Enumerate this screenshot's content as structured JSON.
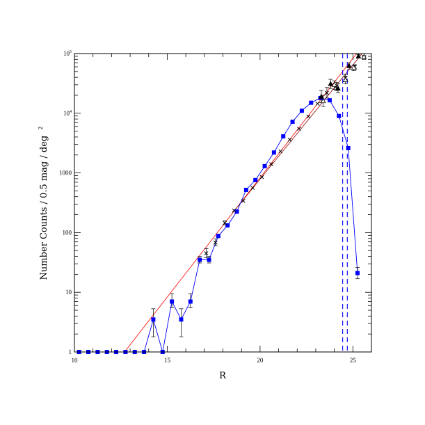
{
  "chart_data": {
    "type": "scatter",
    "title": "",
    "xlabel": "R",
    "ylabel": "Number Counts / 0.5 mag / deg",
    "ylabel_superscript": "2",
    "xlim": [
      10,
      26
    ],
    "ylim": [
      1,
      100000
    ],
    "yscale": "log",
    "grid": false,
    "legend": "none",
    "x_ticks": [
      {
        "value": 10,
        "label": "10"
      },
      {
        "value": 15,
        "label": "15"
      },
      {
        "value": 20,
        "label": "20"
      },
      {
        "value": 25,
        "label": "25"
      }
    ],
    "y_ticks": [
      {
        "value": 1,
        "label": "1",
        "sup": ""
      },
      {
        "value": 10,
        "label": "10",
        "sup": ""
      },
      {
        "value": 100,
        "label": "100",
        "sup": ""
      },
      {
        "value": 1000,
        "label": "1000",
        "sup": ""
      },
      {
        "value": 10000,
        "label": "10",
        "sup": "4"
      },
      {
        "value": 100000,
        "label": "10",
        "sup": "5"
      }
    ],
    "series": [
      {
        "marker": "filled-square",
        "color": "#0000ff",
        "connected": true,
        "points": [
          {
            "x": 10.25,
            "y": 1
          },
          {
            "x": 10.75,
            "y": 1
          },
          {
            "x": 11.25,
            "y": 1
          },
          {
            "x": 11.75,
            "y": 1
          },
          {
            "x": 12.25,
            "y": 1
          },
          {
            "x": 12.75,
            "y": 1
          },
          {
            "x": 13.25,
            "y": 1
          },
          {
            "x": 13.75,
            "y": 1
          },
          {
            "x": 14.25,
            "y": 3.5,
            "ylo": 1.8,
            "yhi": 5.3
          },
          {
            "x": 14.75,
            "y": 1
          },
          {
            "x": 15.25,
            "y": 7,
            "ylo": 5.5,
            "yhi": 9.5
          },
          {
            "x": 15.75,
            "y": 3.5,
            "ylo": 1.8,
            "yhi": 5.3
          },
          {
            "x": 16.25,
            "y": 7,
            "ylo": 5.5,
            "yhi": 9.5
          },
          {
            "x": 16.75,
            "y": 35,
            "ylo": 31,
            "yhi": 40
          },
          {
            "x": 17.25,
            "y": 35,
            "ylo": 31,
            "yhi": 40
          },
          {
            "x": 17.75,
            "y": 88,
            "ylo": 82,
            "yhi": 94
          },
          {
            "x": 18.25,
            "y": 132
          },
          {
            "x": 18.75,
            "y": 225
          },
          {
            "x": 19.25,
            "y": 520
          },
          {
            "x": 19.75,
            "y": 760
          },
          {
            "x": 20.25,
            "y": 1300
          },
          {
            "x": 20.75,
            "y": 2200
          },
          {
            "x": 21.25,
            "y": 4100
          },
          {
            "x": 21.75,
            "y": 7200
          },
          {
            "x": 22.25,
            "y": 11000
          },
          {
            "x": 22.75,
            "y": 15000
          },
          {
            "x": 23.25,
            "y": 18000
          },
          {
            "x": 23.75,
            "y": 16500
          },
          {
            "x": 24.25,
            "y": 9000
          },
          {
            "x": 24.75,
            "y": 2600
          },
          {
            "x": 25.25,
            "y": 21,
            "ylo": 17,
            "yhi": 26
          }
        ]
      },
      {
        "marker": "cross",
        "color": "#000000",
        "connected": false,
        "points": [
          {
            "x": 17.1,
            "y": 45,
            "ylo": 38,
            "yhi": 54
          },
          {
            "x": 17.6,
            "y": 68,
            "ylo": 60,
            "yhi": 78
          },
          {
            "x": 18.1,
            "y": 145,
            "ylo": 135,
            "yhi": 158
          },
          {
            "x": 18.6,
            "y": 235
          },
          {
            "x": 19.1,
            "y": 340
          },
          {
            "x": 19.6,
            "y": 560
          },
          {
            "x": 20.1,
            "y": 850
          },
          {
            "x": 20.6,
            "y": 1400
          },
          {
            "x": 21.1,
            "y": 2300
          },
          {
            "x": 21.6,
            "y": 3600
          },
          {
            "x": 22.1,
            "y": 5500
          },
          {
            "x": 22.6,
            "y": 8800
          },
          {
            "x": 23.1,
            "y": 14500
          },
          {
            "x": 23.6,
            "y": 22000,
            "ylo": 18000,
            "yhi": 27000
          },
          {
            "x": 24.1,
            "y": 28000,
            "ylo": 24000,
            "yhi": 33000
          },
          {
            "x": 24.6,
            "y": 39000,
            "ylo": 34000,
            "yhi": 45000
          },
          {
            "x": 25.1,
            "y": 60000,
            "ylo": 55000,
            "yhi": 65000
          },
          {
            "x": 25.6,
            "y": 85000,
            "ylo": 80000,
            "yhi": 90000
          }
        ]
      },
      {
        "marker": "filled-triangle",
        "color": "#000000",
        "connected": false,
        "points": [
          {
            "x": 23.3,
            "y": 19000,
            "ylo": 15000,
            "yhi": 24000
          },
          {
            "x": 23.8,
            "y": 31000,
            "ylo": 26000,
            "yhi": 37000
          },
          {
            "x": 24.2,
            "y": 26000,
            "ylo": 22000,
            "yhi": 31000
          },
          {
            "x": 24.8,
            "y": 62000,
            "ylo": 55000,
            "yhi": 70000
          },
          {
            "x": 25.3,
            "y": 90000,
            "ylo": 84000,
            "yhi": 96000
          }
        ]
      },
      {
        "marker": "open-triangle",
        "color": "#000000",
        "connected": false,
        "points": [
          {
            "x": 23.4,
            "y": 16000,
            "ylo": 13000,
            "yhi": 20000
          },
          {
            "x": 24.0,
            "y": 30000,
            "ylo": 25000,
            "yhi": 35000
          },
          {
            "x": 24.6,
            "y": 36000,
            "ylo": 31000,
            "yhi": 42000
          },
          {
            "x": 25.05,
            "y": 58000,
            "ylo": 52000,
            "yhi": 64000
          },
          {
            "x": 25.6,
            "y": 88000,
            "ylo": 83000,
            "yhi": 93000
          }
        ]
      }
    ],
    "lines": [
      {
        "style": "solid",
        "color": "#ff0000",
        "x": [
          12.7,
          25.2
        ],
        "y": [
          1,
          100000
        ]
      },
      {
        "style": "solid",
        "color": "#8b0000",
        "x": [
          18.5,
          25.5
        ],
        "y": [
          210,
          100000
        ]
      }
    ],
    "vlines": [
      {
        "style": "dashed",
        "color": "#0000ff",
        "x": 24.45
      },
      {
        "style": "dashed",
        "color": "#0000ff",
        "x": 24.7
      }
    ]
  }
}
